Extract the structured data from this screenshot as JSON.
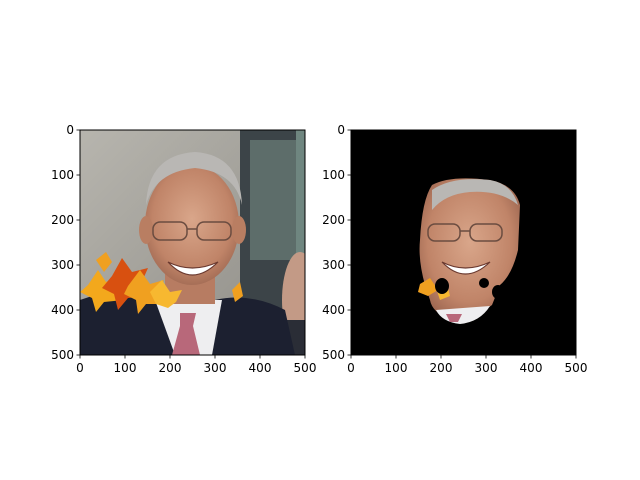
{
  "chart_data": [
    {
      "type": "image",
      "image": "face photo with overlaid autumn leaves",
      "xlim": [
        0,
        500
      ],
      "ylim": [
        500,
        0
      ],
      "xticks": [
        0,
        100,
        200,
        300,
        400,
        500
      ],
      "yticks": [
        0,
        100,
        200,
        300,
        400,
        500
      ],
      "xtick_labels": [
        "0",
        "100",
        "200",
        "300",
        "400",
        "500"
      ],
      "ytick_labels": [
        "0",
        "100",
        "200",
        "300",
        "400",
        "500"
      ]
    },
    {
      "type": "image",
      "image": "segmented face mask on black background",
      "xlim": [
        0,
        500
      ],
      "ylim": [
        500,
        0
      ],
      "xticks": [
        0,
        100,
        200,
        300,
        400,
        500
      ],
      "yticks": [
        0,
        100,
        200,
        300,
        400,
        500
      ],
      "xtick_labels": [
        "0",
        "100",
        "200",
        "300",
        "400",
        "500"
      ],
      "ytick_labels": [
        "0",
        "100",
        "200",
        "300",
        "400",
        "500"
      ]
    }
  ],
  "colors": {
    "mask_background": "#000000",
    "leaf_orange": "#f0a020",
    "leaf_red": "#d85010",
    "suit": "#1c2030",
    "skin": "#c89478",
    "wall": "#a8a6a0"
  }
}
